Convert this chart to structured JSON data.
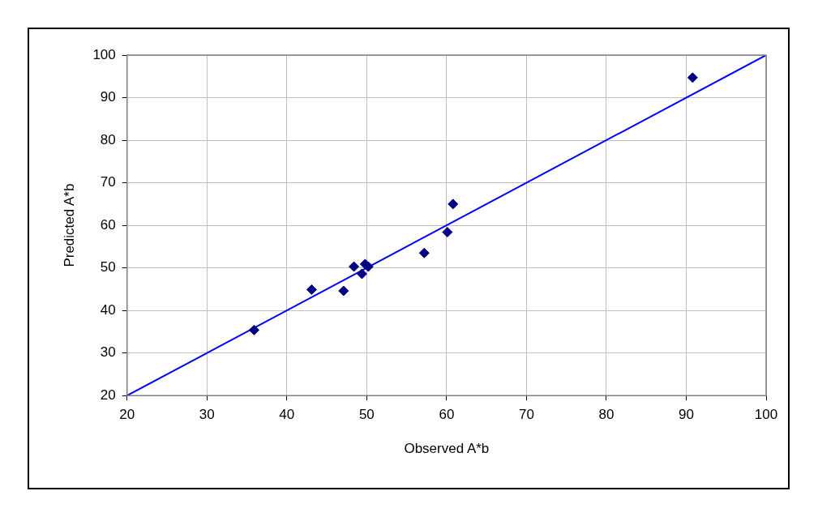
{
  "chart_data": {
    "type": "scatter",
    "xlabel": "Observed A*b",
    "ylabel": "Predicted A*b",
    "xlim": [
      20,
      100
    ],
    "ylim": [
      20,
      100
    ],
    "xticks": [
      20,
      30,
      40,
      50,
      60,
      70,
      80,
      90,
      100
    ],
    "yticks": [
      20,
      30,
      40,
      50,
      60,
      70,
      80,
      90,
      100
    ],
    "grid": true,
    "legend": false,
    "series": [
      {
        "type": "scatter",
        "marker": "diamond",
        "color": "#000080",
        "x": [
          35.9,
          43.1,
          47.1,
          48.4,
          49.4,
          49.8,
          50.2,
          57.2,
          60.1,
          60.8,
          90.8
        ],
        "values": [
          35.4,
          44.9,
          44.6,
          50.3,
          48.6,
          50.9,
          50.3,
          53.5,
          58.4,
          65.0,
          94.7
        ]
      },
      {
        "type": "line",
        "marker": "none",
        "line_style": "solid",
        "color": "#0000ff",
        "x": [
          20,
          100
        ],
        "values": [
          20,
          100
        ]
      }
    ]
  }
}
